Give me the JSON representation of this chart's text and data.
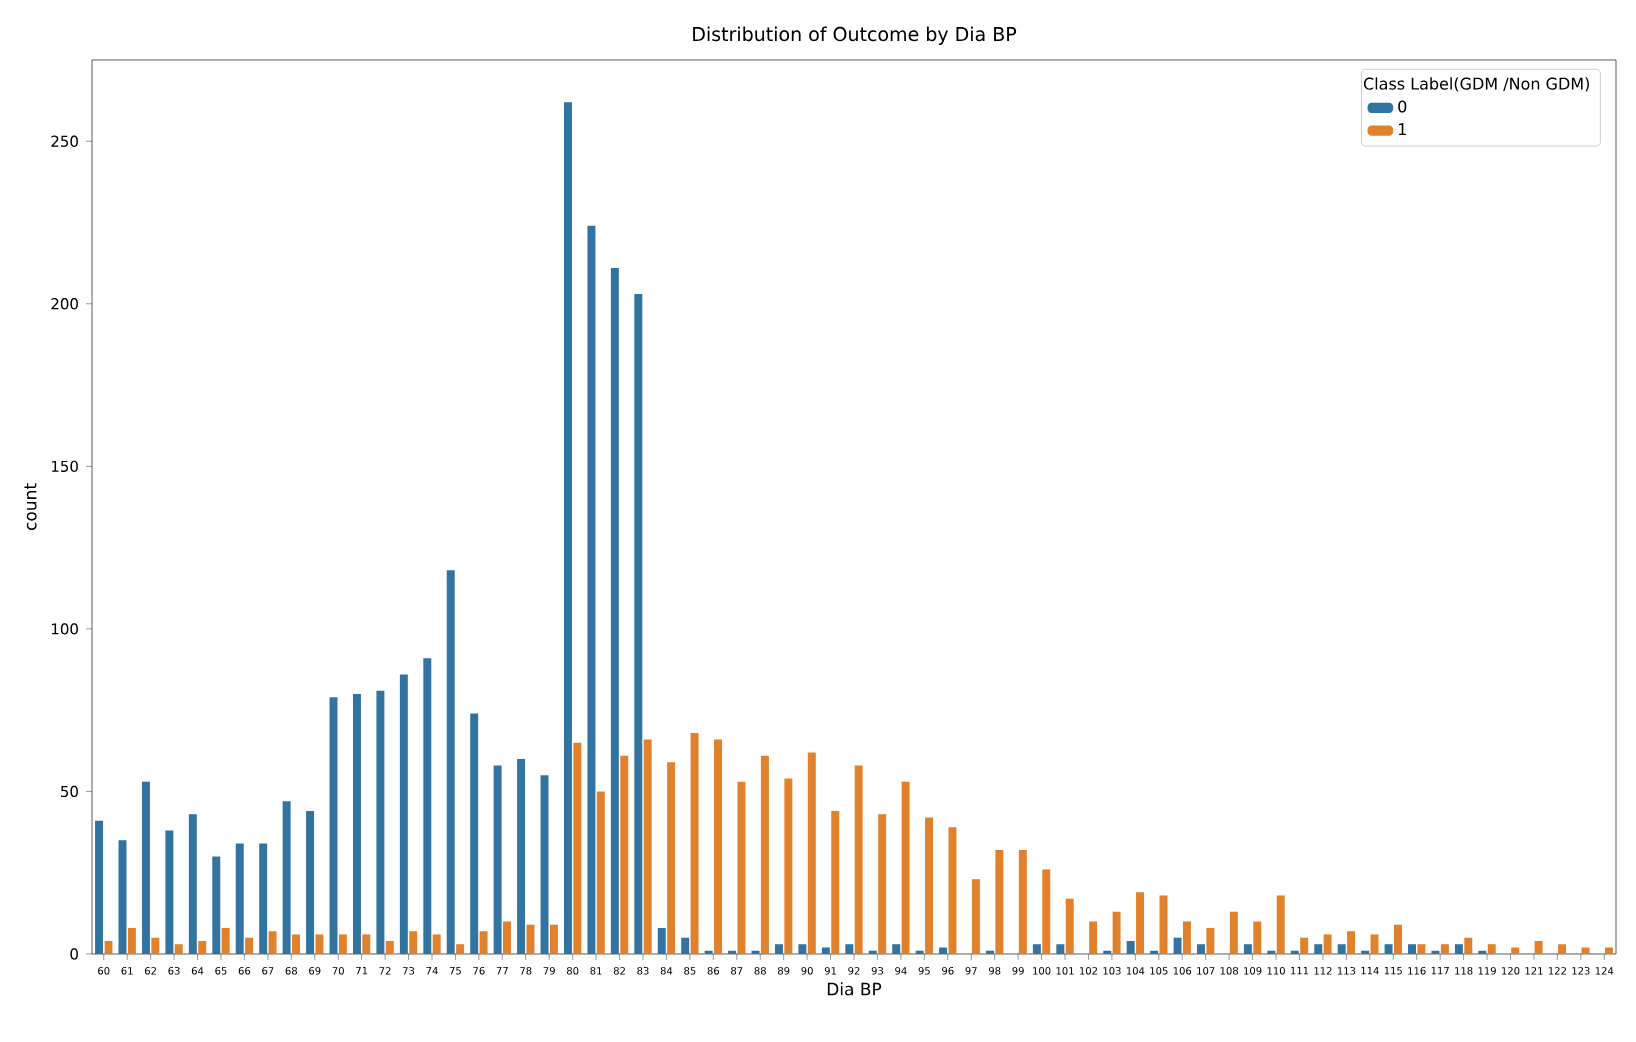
{
  "chart_data": {
    "type": "bar",
    "title": "Distribution of Outcome by  Dia BP",
    "xlabel": "Dia BP",
    "ylabel": "count",
    "legend_title": "Class Label(GDM /Non GDM)",
    "legend": "top right",
    "categories": [
      "60",
      "61",
      "62",
      "63",
      "64",
      "65",
      "66",
      "67",
      "68",
      "69",
      "70",
      "71",
      "72",
      "73",
      "74",
      "75",
      "76",
      "77",
      "78",
      "79",
      "80",
      "81",
      "82",
      "83",
      "84",
      "85",
      "86",
      "87",
      "88",
      "89",
      "90",
      "91",
      "92",
      "93",
      "94",
      "95",
      "96",
      "97",
      "98",
      "99",
      "100",
      "101",
      "102",
      "103",
      "104",
      "105",
      "106",
      "107",
      "108",
      "109",
      "110",
      "111",
      "112",
      "113",
      "114",
      "115",
      "116",
      "117",
      "118",
      "119",
      "120",
      "121",
      "122",
      "123",
      "124"
    ],
    "series": [
      {
        "name": "0",
        "color": "#3274a1",
        "values": [
          41,
          35,
          53,
          38,
          43,
          30,
          34,
          34,
          47,
          44,
          79,
          80,
          81,
          86,
          91,
          118,
          74,
          58,
          60,
          55,
          262,
          224,
          211,
          203,
          8,
          5,
          1,
          1,
          1,
          3,
          3,
          2,
          3,
          1,
          3,
          1,
          2,
          0,
          1,
          0,
          3,
          3,
          0,
          1,
          4,
          1,
          5,
          3,
          0,
          3,
          1,
          1,
          3,
          3,
          1,
          3,
          3,
          1,
          3,
          1,
          0,
          0,
          0,
          0,
          0
        ]
      },
      {
        "name": "1",
        "color": "#e1812c",
        "values": [
          4,
          8,
          5,
          3,
          4,
          8,
          5,
          7,
          6,
          6,
          6,
          6,
          4,
          7,
          6,
          3,
          7,
          10,
          9,
          9,
          65,
          50,
          61,
          66,
          59,
          68,
          66,
          53,
          61,
          54,
          62,
          44,
          58,
          43,
          53,
          42,
          39,
          23,
          32,
          32,
          26,
          17,
          10,
          13,
          19,
          18,
          10,
          8,
          13,
          10,
          18,
          5,
          6,
          7,
          6,
          9,
          3,
          3,
          5,
          3,
          2,
          4,
          3,
          2,
          2
        ]
      }
    ],
    "ylim": [
      0,
      275
    ],
    "yticks": [
      0,
      50,
      100,
      150,
      200,
      250
    ],
    "grid": false
  }
}
